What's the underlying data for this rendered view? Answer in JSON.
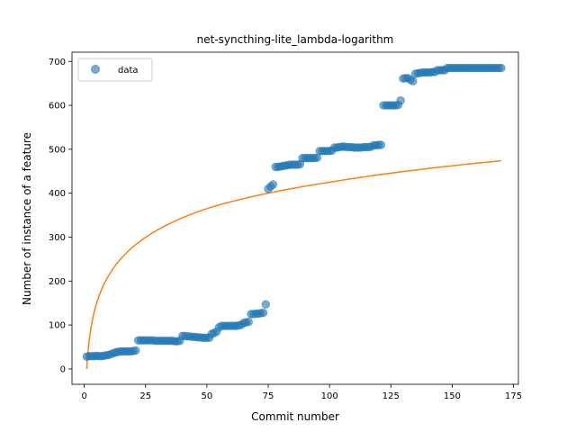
{
  "chart_data": {
    "type": "scatter",
    "title": "net-syncthing-lite_lambda-logarithm",
    "xlabel": "Commit number",
    "ylabel": "Number of instance of a feature",
    "xlim": [
      -5,
      177
    ],
    "ylim": [
      -35,
      721
    ],
    "xticks": [
      0,
      25,
      50,
      75,
      100,
      125,
      150,
      175
    ],
    "yticks": [
      0,
      100,
      200,
      300,
      400,
      500,
      600,
      700
    ],
    "grid": false,
    "legend": {
      "placement": "top-left",
      "entries": [
        "data"
      ]
    },
    "colors": {
      "data": "#1f77b4",
      "fit": "#ff7f0e"
    },
    "series": [
      {
        "name": "data",
        "kind": "scatter",
        "x": [
          1,
          2,
          3,
          4,
          5,
          6,
          7,
          8,
          9,
          10,
          11,
          12,
          13,
          14,
          15,
          16,
          17,
          18,
          19,
          20,
          21,
          22,
          23,
          24,
          25,
          26,
          27,
          28,
          29,
          30,
          31,
          32,
          33,
          34,
          35,
          36,
          37,
          38,
          39,
          40,
          41,
          42,
          43,
          44,
          45,
          46,
          47,
          48,
          49,
          50,
          51,
          52,
          53,
          54,
          55,
          56,
          57,
          58,
          59,
          60,
          61,
          62,
          63,
          64,
          65,
          66,
          67,
          68,
          69,
          70,
          71,
          72,
          73,
          74,
          75,
          76,
          77,
          78,
          79,
          80,
          81,
          82,
          83,
          84,
          85,
          86,
          87,
          88,
          89,
          90,
          91,
          92,
          93,
          94,
          95,
          96,
          97,
          98,
          99,
          100,
          101,
          102,
          103,
          104,
          105,
          106,
          107,
          108,
          109,
          110,
          111,
          112,
          113,
          114,
          115,
          116,
          117,
          118,
          119,
          120,
          121,
          122,
          123,
          124,
          125,
          126,
          127,
          128,
          129,
          130,
          131,
          132,
          133,
          134,
          135,
          136,
          137,
          138,
          139,
          140,
          141,
          142,
          143,
          144,
          145,
          146,
          147,
          148,
          149,
          150,
          151,
          152,
          153,
          154,
          155,
          156,
          157,
          158,
          159,
          160,
          161,
          162,
          163,
          164,
          165,
          166,
          167,
          168,
          169,
          170
        ],
        "y": [
          28,
          29,
          29,
          29,
          30,
          29,
          29,
          30,
          31,
          32,
          34,
          36,
          38,
          39,
          40,
          40,
          40,
          40,
          40,
          41,
          42,
          65,
          65,
          65,
          65,
          65,
          65,
          65,
          64,
          64,
          64,
          64,
          64,
          64,
          64,
          64,
          63,
          63,
          64,
          75,
          75,
          74,
          74,
          73,
          73,
          72,
          72,
          71,
          71,
          71,
          71,
          80,
          82,
          85,
          95,
          98,
          98,
          98,
          98,
          98,
          98,
          98,
          99,
          100,
          105,
          106,
          107,
          125,
          125,
          126,
          126,
          127,
          128,
          147,
          410,
          415,
          420,
          460,
          460,
          461,
          462,
          463,
          464,
          465,
          465,
          465,
          465,
          466,
          480,
          480,
          480,
          480,
          480,
          480,
          481,
          496,
          496,
          496,
          496,
          496,
          497,
          504,
          504,
          505,
          506,
          506,
          505,
          505,
          505,
          504,
          504,
          504,
          504,
          505,
          505,
          505,
          506,
          509,
          509,
          510,
          510,
          600,
          600,
          600,
          600,
          600,
          600,
          601,
          611,
          661,
          662,
          662,
          658,
          655,
          672,
          673,
          674,
          675,
          675,
          675,
          675,
          676,
          676,
          680,
          680,
          680,
          680,
          685,
          685,
          685,
          685,
          685,
          685,
          685,
          685,
          685,
          685,
          685,
          685,
          685,
          685,
          685,
          685,
          685,
          685,
          685,
          685,
          685,
          685,
          685
        ]
      },
      {
        "name": "",
        "kind": "line",
        "function": "lambda-logarithm",
        "x_range": [
          1,
          170
        ],
        "fit_points": [
          [
            1,
            0
          ],
          [
            10,
            213
          ],
          [
            50,
            365
          ],
          [
            100,
            425
          ],
          [
            170,
            474
          ]
        ]
      }
    ]
  }
}
